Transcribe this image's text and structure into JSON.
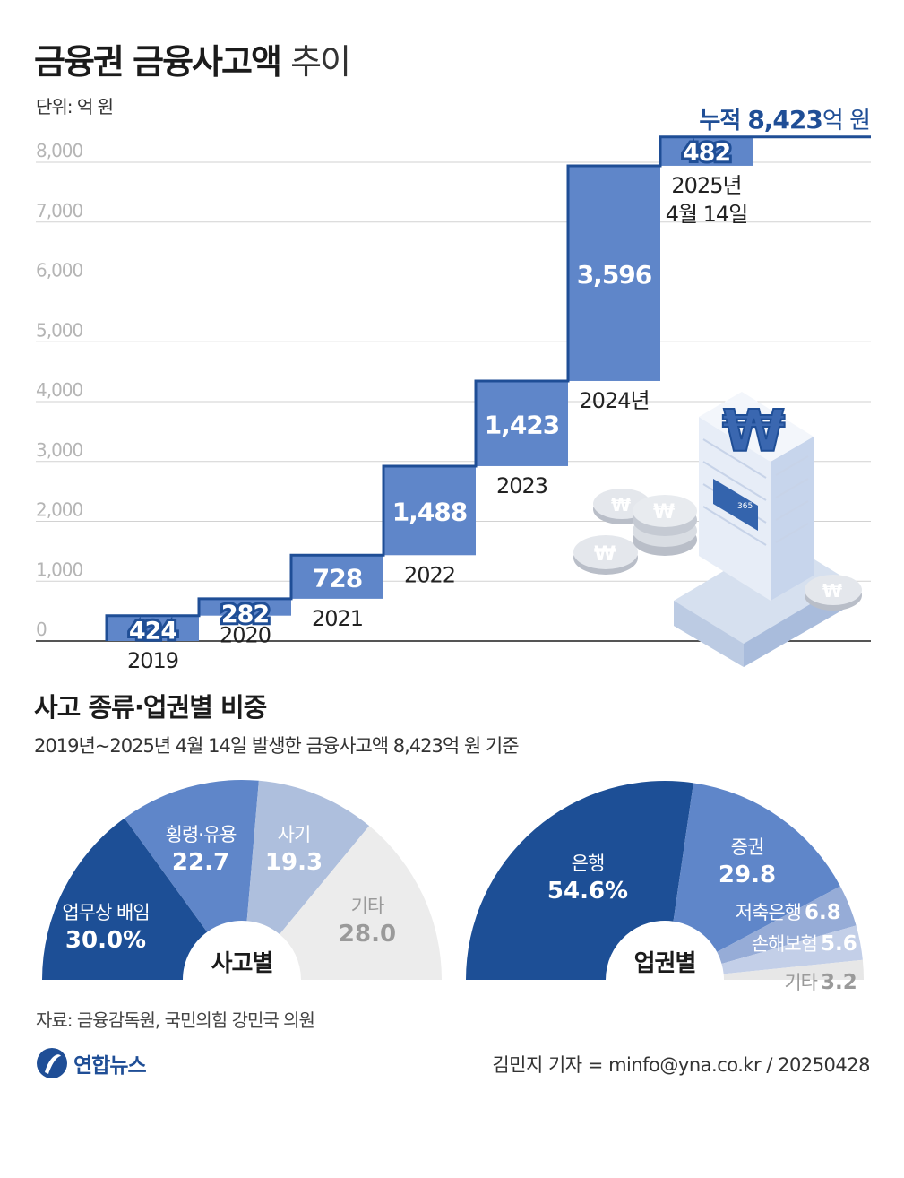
{
  "header": {
    "title_bold": "금융권 금융사고액",
    "title_light": "추이",
    "unit": "단위: 억 원",
    "total_prefix": "누적",
    "total_value": "8,423",
    "total_suffix": "억 원"
  },
  "chart_data": [
    {
      "type": "bar",
      "subtype": "waterfall",
      "categories": [
        "2019",
        "2020",
        "2021",
        "2022",
        "2023",
        "2024년",
        "2025년 4월 14일"
      ],
      "values": [
        424,
        282,
        728,
        1488,
        1423,
        3596,
        482
      ],
      "value_labels": [
        "424",
        "282",
        "728",
        "1,488",
        "1,423",
        "3,596",
        "482"
      ],
      "yticks": [
        "0",
        "1,000",
        "2,000",
        "3,000",
        "4,000",
        "5,000",
        "6,000",
        "7,000",
        "8,000"
      ],
      "ylim": [
        0,
        8423
      ],
      "grid": true
    },
    {
      "type": "pie",
      "subtype": "semicircle",
      "center_label": "사고별",
      "labels": [
        "업무상 배임",
        "횡령·유용",
        "사기",
        "기타"
      ],
      "values": [
        30.0,
        22.7,
        19.3,
        28.0
      ],
      "value_labels": [
        "30.0%",
        "22.7",
        "19.3",
        "28.0"
      ],
      "colors": [
        "#1d4f96",
        "#5f86c9",
        "#aebfdd",
        "#ececec"
      ]
    },
    {
      "type": "pie",
      "subtype": "semicircle",
      "center_label": "업권별",
      "labels": [
        "은행",
        "증권",
        "저축은행",
        "손해보험",
        "기타"
      ],
      "values": [
        54.6,
        29.8,
        6.8,
        5.6,
        3.2
      ],
      "value_labels": [
        "54.6%",
        "29.8",
        "6.8",
        "5.6",
        "3.2"
      ],
      "colors": [
        "#1d4f96",
        "#5f86c9",
        "#96acd7",
        "#c3cfe8",
        "#e7e7e7"
      ]
    }
  ],
  "section2": {
    "title": "사고 종류·업권별 비중",
    "subtitle": "2019년~2025년 4월 14일 발생한 금융사고액 8,423억 원 기준"
  },
  "footer": {
    "source": "자료: 금융감독원, 국민의힘 강민국 의원",
    "byline": "김민지 기자 = minfo@yna.co.kr / 20250428",
    "logo_text": "연합뉴스"
  },
  "illustration": {
    "building_sign": "365",
    "coin_symbol": "₩"
  },
  "colors": {
    "bar_fill": "#5f86c9",
    "bar_stroke": "#1f4e96",
    "accent": "#1f4e96"
  }
}
